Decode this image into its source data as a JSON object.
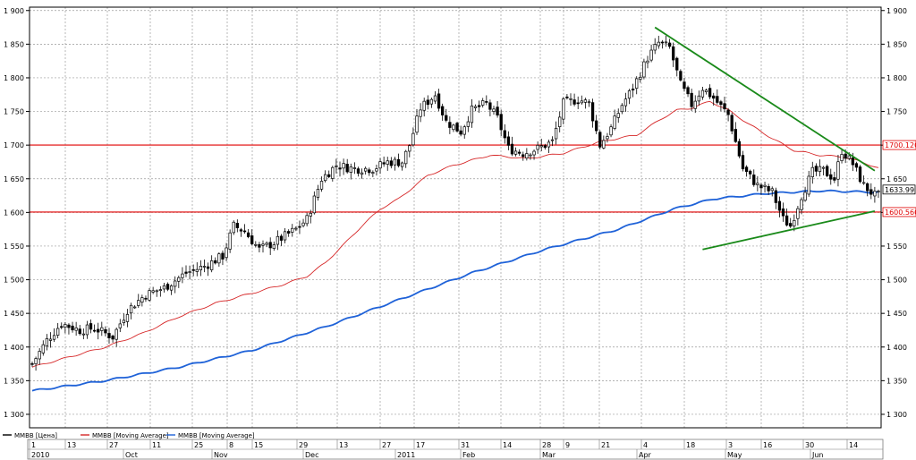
{
  "colors": {
    "price": "#000000",
    "ma_short": "#d62728",
    "ma_long": "#1f62d8",
    "levels": "#e00000",
    "trendline": "#1a8a1a",
    "grid": "#9a9a9a",
    "background": "#ffffff"
  },
  "legend": [
    {
      "name": "MMBB [Цена]",
      "color": "#000000"
    },
    {
      "name": "MMBB [Moving Average]",
      "color": "#d62728"
    },
    {
      "name": "MMBB [Moving Average]",
      "color": "#1f62d8"
    }
  ],
  "chart_data": {
    "type": "candlestick",
    "y_range": [
      1280,
      1905
    ],
    "y_ticks": [
      1300,
      1350,
      1400,
      1450,
      1500,
      1550,
      1600,
      1650,
      1700,
      1750,
      1800,
      1850,
      1900
    ],
    "y_tick_labels": [
      "1 300",
      "1 350",
      "1 400",
      "1 450",
      "1 500",
      "1 550",
      "1 600",
      "1 650",
      "1 700",
      "1 750",
      "1 800",
      "1 850",
      "1 900"
    ],
    "x_days": [
      "1",
      "13",
      "27",
      "11",
      "25",
      "8",
      "15",
      "29",
      "13",
      "27",
      "17",
      "31",
      "14",
      "28",
      "9",
      "21",
      "4",
      "18",
      "3",
      "16",
      "30",
      "14"
    ],
    "x_months": [
      "2010",
      "Oct",
      "Nov",
      "Dec",
      "2011",
      "Feb",
      "Mar",
      "Apr",
      "May",
      "Jun"
    ],
    "horizontal_levels": [
      {
        "value": 1700.1202,
        "label": "1700.1202"
      },
      {
        "value": 1600.5608,
        "label": "1600.5608"
      }
    ],
    "last_price": {
      "value": 1633.99,
      "label": "1633.99"
    },
    "trendlines": [
      {
        "from": {
          "i": 170,
          "y": 1875
        },
        "to": {
          "i": 230,
          "y": 1662
        }
      },
      {
        "from": {
          "i": 183,
          "y": 1545
        },
        "to": {
          "i": 230,
          "y": 1602
        }
      }
    ],
    "price_anchors": [
      [
        0,
        1375
      ],
      [
        4,
        1410
      ],
      [
        8,
        1435
      ],
      [
        13,
        1425
      ],
      [
        17,
        1428
      ],
      [
        22,
        1415
      ],
      [
        26,
        1455
      ],
      [
        31,
        1478
      ],
      [
        36,
        1488
      ],
      [
        42,
        1510
      ],
      [
        47,
        1520
      ],
      [
        52,
        1535
      ],
      [
        55,
        1580
      ],
      [
        58,
        1572
      ],
      [
        62,
        1545
      ],
      [
        66,
        1555
      ],
      [
        72,
        1575
      ],
      [
        75,
        1590
      ],
      [
        79,
        1650
      ],
      [
        83,
        1670
      ],
      [
        88,
        1665
      ],
      [
        93,
        1665
      ],
      [
        97,
        1675
      ],
      [
        101,
        1675
      ],
      [
        103,
        1700
      ],
      [
        106,
        1755
      ],
      [
        110,
        1775
      ],
      [
        113,
        1735
      ],
      [
        117,
        1720
      ],
      [
        120,
        1752
      ],
      [
        124,
        1762
      ],
      [
        127,
        1740
      ],
      [
        130,
        1695
      ],
      [
        134,
        1688
      ],
      [
        138,
        1695
      ],
      [
        142,
        1705
      ],
      [
        145,
        1762
      ],
      [
        149,
        1768
      ],
      [
        152,
        1762
      ],
      [
        155,
        1700
      ],
      [
        158,
        1725
      ],
      [
        161,
        1760
      ],
      [
        164,
        1785
      ],
      [
        168,
        1830
      ],
      [
        171,
        1852
      ],
      [
        174,
        1845
      ],
      [
        177,
        1790
      ],
      [
        180,
        1760
      ],
      [
        183,
        1785
      ],
      [
        186,
        1770
      ],
      [
        190,
        1745
      ],
      [
        194,
        1665
      ],
      [
        198,
        1640
      ],
      [
        202,
        1630
      ],
      [
        205,
        1590
      ],
      [
        207,
        1580
      ],
      [
        210,
        1625
      ],
      [
        213,
        1660
      ],
      [
        216,
        1662
      ],
      [
        219,
        1650
      ],
      [
        221,
        1692
      ],
      [
        224,
        1672
      ],
      [
        227,
        1640
      ],
      [
        230,
        1625
      ]
    ],
    "ma_short_anchors": [
      [
        0,
        1370
      ],
      [
        10,
        1385
      ],
      [
        20,
        1400
      ],
      [
        30,
        1420
      ],
      [
        40,
        1445
      ],
      [
        50,
        1465
      ],
      [
        60,
        1480
      ],
      [
        68,
        1492
      ],
      [
        75,
        1505
      ],
      [
        80,
        1525
      ],
      [
        85,
        1552
      ],
      [
        90,
        1580
      ],
      [
        95,
        1605
      ],
      [
        100,
        1620
      ],
      [
        108,
        1655
      ],
      [
        115,
        1670
      ],
      [
        125,
        1685
      ],
      [
        135,
        1680
      ],
      [
        145,
        1688
      ],
      [
        155,
        1705
      ],
      [
        165,
        1715
      ],
      [
        172,
        1740
      ],
      [
        176,
        1752
      ],
      [
        180,
        1755
      ],
      [
        185,
        1765
      ],
      [
        190,
        1752
      ],
      [
        196,
        1730
      ],
      [
        202,
        1710
      ],
      [
        208,
        1692
      ],
      [
        215,
        1685
      ],
      [
        222,
        1682
      ],
      [
        228,
        1672
      ],
      [
        231,
        1666
      ]
    ],
    "ma_long_anchors": [
      [
        0,
        1335
      ],
      [
        20,
        1350
      ],
      [
        40,
        1370
      ],
      [
        60,
        1395
      ],
      [
        80,
        1430
      ],
      [
        100,
        1470
      ],
      [
        120,
        1510
      ],
      [
        140,
        1545
      ],
      [
        160,
        1575
      ],
      [
        175,
        1605
      ],
      [
        186,
        1620
      ],
      [
        200,
        1628
      ],
      [
        215,
        1632
      ],
      [
        231,
        1630
      ]
    ]
  }
}
